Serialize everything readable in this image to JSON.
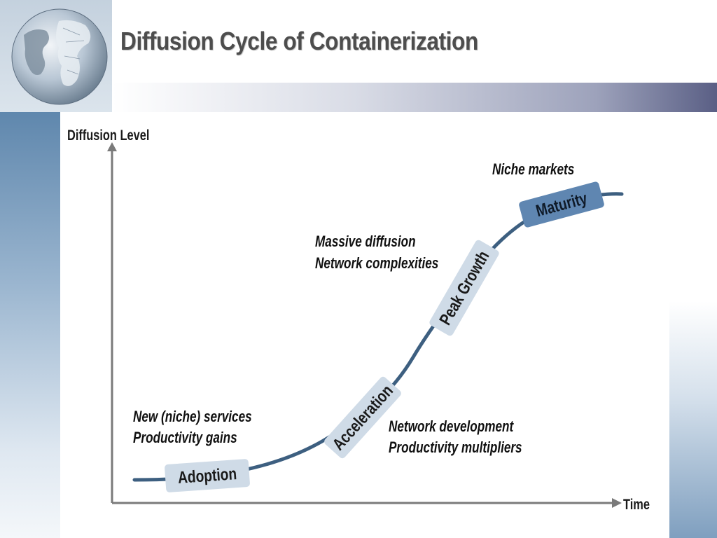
{
  "slide": {
    "title": "Diffusion Cycle of Containerization"
  },
  "axes": {
    "y_label": "Diffusion Level",
    "x_label": "Time"
  },
  "stages": [
    {
      "label": "Adoption",
      "style": "light"
    },
    {
      "label": "Acceleration",
      "style": "light"
    },
    {
      "label": "Peak Growth",
      "style": "light"
    },
    {
      "label": "Maturity",
      "style": "dark"
    }
  ],
  "annotations": {
    "adoption": [
      "New (niche) services",
      "Productivity gains"
    ],
    "acceleration": [
      "Network development",
      "Productivity multipliers"
    ],
    "peak_growth": [
      "Massive diffusion",
      "Network complexities"
    ],
    "maturity": [
      "Niche markets"
    ]
  },
  "colors": {
    "curve": "#3d5f80",
    "axis": "#7a7a7a",
    "stage_light": "#cfdbe7",
    "stage_dark": "#5f86b1",
    "title": "#4d4d4d"
  }
}
